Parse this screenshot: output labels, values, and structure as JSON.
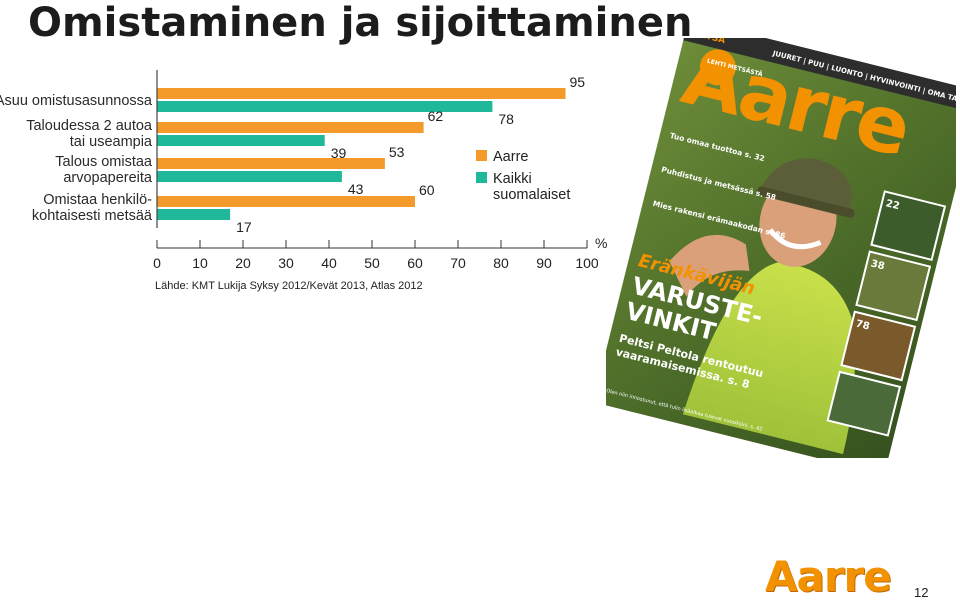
{
  "page": {
    "title": "Omistaminen ja sijoittaminen",
    "source": "Lähde: KMT Lukija Syksy 2012/Kevät 2013, Atlas 2012",
    "page_number": "12",
    "logo_text": "Aarre"
  },
  "colors": {
    "aarre": "#f39a2b",
    "kaikki": "#1fb89a"
  },
  "chart_data": {
    "type": "bar",
    "orientation": "horizontal",
    "title": "",
    "categories": [
      [
        "Asuu omistusasunnossa"
      ],
      [
        "Taloudessa 2 autoa",
        "tai useampia"
      ],
      [
        "Talous omistaa",
        "arvopapereita"
      ],
      [
        "Omistaa henkilö-",
        "kohtaisesti metsää"
      ]
    ],
    "series": [
      {
        "name": "Aarre",
        "values": [
          95,
          62,
          53,
          60
        ]
      },
      {
        "name": "Kaikki suomalaiset",
        "values": [
          78,
          39,
          43,
          17
        ]
      }
    ],
    "legend": [
      {
        "lines": [
          "Aarre"
        ]
      },
      {
        "lines": [
          "Kaikki",
          "suomalaiset"
        ]
      }
    ],
    "xlim": [
      0,
      100
    ],
    "xticks": [
      "0",
      "10",
      "20",
      "30",
      "40",
      "50",
      "60",
      "70",
      "80",
      "90",
      "100"
    ],
    "unit": "%",
    "legend_position": "right",
    "grid": false
  },
  "cover": {
    "brand": "Aarre",
    "top_label": "METSÄ",
    "nav": [
      "JUURET",
      "PUU",
      "LUONTO",
      "HYVINVOINTI",
      "OMA TALOUS"
    ],
    "badge": "LEHTI METSÄSTÄ",
    "headline_1": "Eränkävijän",
    "headline_2": "VARUSTE-",
    "headline_3": "VINKIT",
    "sub": "Peltsi Peltola rentoutuu",
    "sub2": "vaaramaisemissa. s. 8",
    "left_items": [
      "Tuo omaa tuottoa s. 32",
      "Puhdistus ja metsässä s. 58",
      "Mies rakensi erämaakodan s. 86"
    ],
    "right_nums": [
      "22",
      "38",
      "78"
    ],
    "quote": "Olen niin innostunut, että tulin lisäaikaa tulevat vuosiksini. s. 42"
  }
}
